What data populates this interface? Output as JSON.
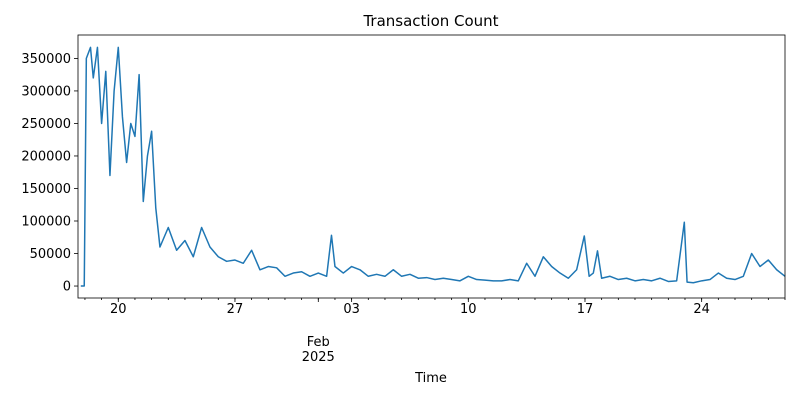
{
  "chart_data": {
    "type": "line",
    "title": "Transaction Count",
    "xlabel": "Time",
    "x": [
      "2025-01-17T18:00",
      "2025-01-17T23:00",
      "2025-01-18T02:00",
      "2025-01-18T08:00",
      "2025-01-18T12:00",
      "2025-01-18T18:00",
      "2025-01-19T00:00",
      "2025-01-19T06:00",
      "2025-01-19T12:00",
      "2025-01-19T18:00",
      "2025-01-20T00:00",
      "2025-01-20T06:00",
      "2025-01-20T12:00",
      "2025-01-20T18:00",
      "2025-01-21T00:00",
      "2025-01-21T06:00",
      "2025-01-21T12:00",
      "2025-01-21T18:00",
      "2025-01-22T00:00",
      "2025-01-22T06:00",
      "2025-01-22T12:00",
      "2025-01-23T00:00",
      "2025-01-23T12:00",
      "2025-01-24T00:00",
      "2025-01-24T12:00",
      "2025-01-25T00:00",
      "2025-01-25T12:00",
      "2025-01-26T00:00",
      "2025-01-26T12:00",
      "2025-01-27T00:00",
      "2025-01-27T12:00",
      "2025-01-28T00:00",
      "2025-01-28T12:00",
      "2025-01-29T00:00",
      "2025-01-29T12:00",
      "2025-01-30T00:00",
      "2025-01-30T12:00",
      "2025-01-31T00:00",
      "2025-01-31T12:00",
      "2025-02-01T00:00",
      "2025-02-01T12:00",
      "2025-02-01T19:00",
      "2025-02-02T00:00",
      "2025-02-02T12:00",
      "2025-02-03T00:00",
      "2025-02-03T12:00",
      "2025-02-04T00:00",
      "2025-02-04T12:00",
      "2025-02-05T00:00",
      "2025-02-05T12:00",
      "2025-02-06T00:00",
      "2025-02-06T12:00",
      "2025-02-07T00:00",
      "2025-02-07T12:00",
      "2025-02-08T00:00",
      "2025-02-08T12:00",
      "2025-02-09T00:00",
      "2025-02-09T12:00",
      "2025-02-10T00:00",
      "2025-02-10T12:00",
      "2025-02-11T00:00",
      "2025-02-11T12:00",
      "2025-02-12T00:00",
      "2025-02-12T12:00",
      "2025-02-13T00:00",
      "2025-02-13T12:00",
      "2025-02-14T00:00",
      "2025-02-14T12:00",
      "2025-02-15T00:00",
      "2025-02-15T12:00",
      "2025-02-16T00:00",
      "2025-02-16T12:00",
      "2025-02-16T23:00",
      "2025-02-17T06:00",
      "2025-02-17T12:00",
      "2025-02-17T18:00",
      "2025-02-18T00:00",
      "2025-02-18T12:00",
      "2025-02-19T00:00",
      "2025-02-19T12:00",
      "2025-02-20T00:00",
      "2025-02-20T12:00",
      "2025-02-21T00:00",
      "2025-02-21T12:00",
      "2025-02-22T00:00",
      "2025-02-22T12:00",
      "2025-02-22T23:00",
      "2025-02-23T03:00",
      "2025-02-23T12:00",
      "2025-02-24T00:00",
      "2025-02-24T12:00",
      "2025-02-25T00:00",
      "2025-02-25T12:00",
      "2025-02-26T00:00",
      "2025-02-26T12:00",
      "2025-02-27T00:00",
      "2025-02-27T12:00",
      "2025-02-28T00:00",
      "2025-02-28T12:00",
      "2025-03-01T00:00"
    ],
    "series": [
      {
        "name": "Transaction Count",
        "color": "#1f77b4",
        "values": [
          0,
          0,
          350000,
          367000,
          320000,
          367000,
          250000,
          330000,
          170000,
          300000,
          367000,
          260000,
          190000,
          250000,
          230000,
          325000,
          130000,
          200000,
          238000,
          120000,
          60000,
          90000,
          55000,
          70000,
          45000,
          90000,
          60000,
          45000,
          38000,
          40000,
          35000,
          55000,
          25000,
          30000,
          28000,
          15000,
          20000,
          22000,
          15000,
          20000,
          15000,
          78000,
          30000,
          20000,
          30000,
          25000,
          15000,
          18000,
          15000,
          25000,
          15000,
          18000,
          12000,
          13000,
          10000,
          12000,
          10000,
          8000,
          15000,
          10000,
          9000,
          8000,
          8000,
          10000,
          8000,
          35000,
          15000,
          45000,
          30000,
          20000,
          12000,
          25000,
          77000,
          15000,
          20000,
          54000,
          12000,
          15000,
          10000,
          12000,
          8000,
          10000,
          8000,
          12000,
          7000,
          8000,
          98000,
          6000,
          5000,
          8000,
          10000,
          20000,
          12000,
          10000,
          15000,
          50000,
          30000,
          40000,
          25000,
          15000
        ]
      }
    ],
    "xlim": [
      "2025-01-17T14:00",
      "2025-03-01T00:00"
    ],
    "xticks": [
      {
        "value": "2025-01-20T00:00",
        "label": "20"
      },
      {
        "value": "2025-01-27T00:00",
        "label": "27"
      },
      {
        "value": "2025-02-01T00:00",
        "label": "Feb\n2025"
      },
      {
        "value": "2025-02-03T00:00",
        "label": "03"
      },
      {
        "value": "2025-02-10T00:00",
        "label": "10"
      },
      {
        "value": "2025-02-17T00:00",
        "label": "17"
      },
      {
        "value": "2025-02-24T00:00",
        "label": "24"
      }
    ],
    "ylim": [
      -18400,
      386000
    ],
    "yticks": [
      0,
      50000,
      100000,
      150000,
      200000,
      250000,
      300000,
      350000
    ],
    "grid": false
  }
}
